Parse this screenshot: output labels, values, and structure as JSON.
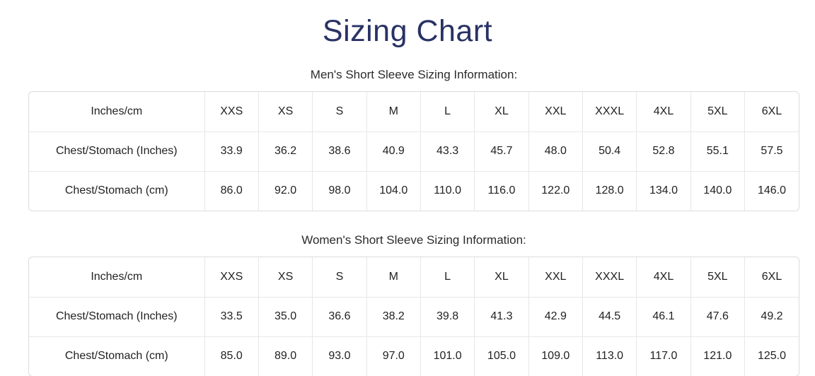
{
  "page": {
    "title": "Sizing Chart"
  },
  "colors": {
    "title_navy": "#293264",
    "text_dark": "#222222",
    "table_border": "#dcdcdc",
    "grid_line": "#e7e7e7"
  },
  "sections": [
    {
      "heading": "Men's Short Sleeve Sizing Information:",
      "table": {
        "rows": [
          [
            "Inches/cm",
            "XXS",
            "XS",
            "S",
            "M",
            "L",
            "XL",
            "XXL",
            "XXXL",
            "4XL",
            "5XL",
            "6XL"
          ],
          [
            "Chest/Stomach (Inches)",
            "33.9",
            "36.2",
            "38.6",
            "40.9",
            "43.3",
            "45.7",
            "48.0",
            "50.4",
            "52.8",
            "55.1",
            "57.5"
          ],
          [
            "Chest/Stomach (cm)",
            "86.0",
            "92.0",
            "98.0",
            "104.0",
            "110.0",
            "116.0",
            "122.0",
            "128.0",
            "134.0",
            "140.0",
            "146.0"
          ]
        ]
      }
    },
    {
      "heading": "Women's Short Sleeve Sizing Information:",
      "table": {
        "rows": [
          [
            "Inches/cm",
            "XXS",
            "XS",
            "S",
            "M",
            "L",
            "XL",
            "XXL",
            "XXXL",
            "4XL",
            "5XL",
            "6XL"
          ],
          [
            "Chest/Stomach (Inches)",
            "33.5",
            "35.0",
            "36.6",
            "38.2",
            "39.8",
            "41.3",
            "42.9",
            "44.5",
            "46.1",
            "47.6",
            "49.2"
          ],
          [
            "Chest/Stomach (cm)",
            "85.0",
            "89.0",
            "93.0",
            "97.0",
            "101.0",
            "105.0",
            "109.0",
            "113.0",
            "117.0",
            "121.0",
            "125.0"
          ]
        ]
      }
    }
  ]
}
